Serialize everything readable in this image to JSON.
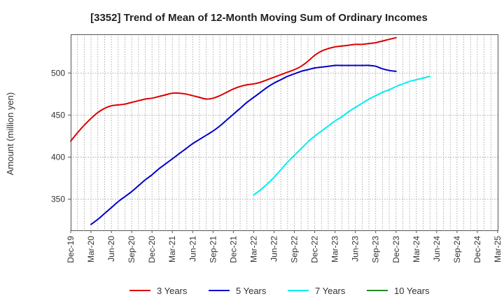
{
  "chart_data": {
    "type": "line",
    "title": "[3352]  Trend of Mean of 12-Month Moving Sum of Ordinary Incomes",
    "xlabel": "",
    "ylabel": "Amount (million yen)",
    "ylim": [
      313,
      546
    ],
    "yticks": [
      350,
      400,
      450,
      500
    ],
    "xlim": [
      "Dec-19",
      "Mar-25"
    ],
    "x_tick_labels": [
      "Dec-19",
      "Mar-20",
      "Jun-20",
      "Sep-20",
      "Dec-20",
      "Mar-21",
      "Jun-21",
      "Sep-21",
      "Dec-21",
      "Mar-22",
      "Jun-22",
      "Sep-22",
      "Dec-22",
      "Mar-23",
      "Jun-23",
      "Sep-23",
      "Dec-23",
      "Mar-24",
      "Jun-24",
      "Sep-24",
      "Dec-24",
      "Mar-25"
    ],
    "grid": true,
    "legend_position": "bottom",
    "series": [
      {
        "name": "3 Years",
        "color": "#dd0000",
        "start": "Dec-19",
        "values": [
          419,
          429,
          438,
          446,
          453,
          458,
          461,
          462,
          463,
          465,
          467,
          469,
          470,
          472,
          474,
          476,
          476,
          475,
          473,
          471,
          469,
          470,
          473,
          477,
          481,
          484,
          486,
          487,
          489,
          492,
          495,
          498,
          501,
          504,
          508,
          514,
          521,
          526,
          529,
          531,
          532,
          533,
          534,
          534,
          535,
          536,
          538,
          540,
          542
        ]
      },
      {
        "name": "5 Years",
        "color": "#0000cc",
        "start": "Mar-20",
        "values": [
          320,
          326,
          333,
          340,
          347,
          353,
          359,
          366,
          373,
          379,
          386,
          392,
          398,
          404,
          410,
          416,
          421,
          426,
          431,
          437,
          444,
          451,
          458,
          465,
          471,
          477,
          483,
          488,
          492,
          496,
          499,
          502,
          504,
          506,
          507,
          508,
          509,
          509,
          509,
          509,
          509,
          509,
          508,
          505,
          503,
          502
        ]
      },
      {
        "name": "7 Years",
        "color": "#00eeee",
        "start": "Mar-22",
        "values": [
          355,
          361,
          368,
          376,
          385,
          394,
          402,
          410,
          418,
          425,
          431,
          437,
          443,
          448,
          454,
          459,
          464,
          469,
          473,
          477,
          480,
          484,
          487,
          490,
          492,
          494,
          496
        ]
      },
      {
        "name": "10 Years",
        "color": "#228822",
        "start": "Dec-24",
        "values": []
      }
    ]
  }
}
